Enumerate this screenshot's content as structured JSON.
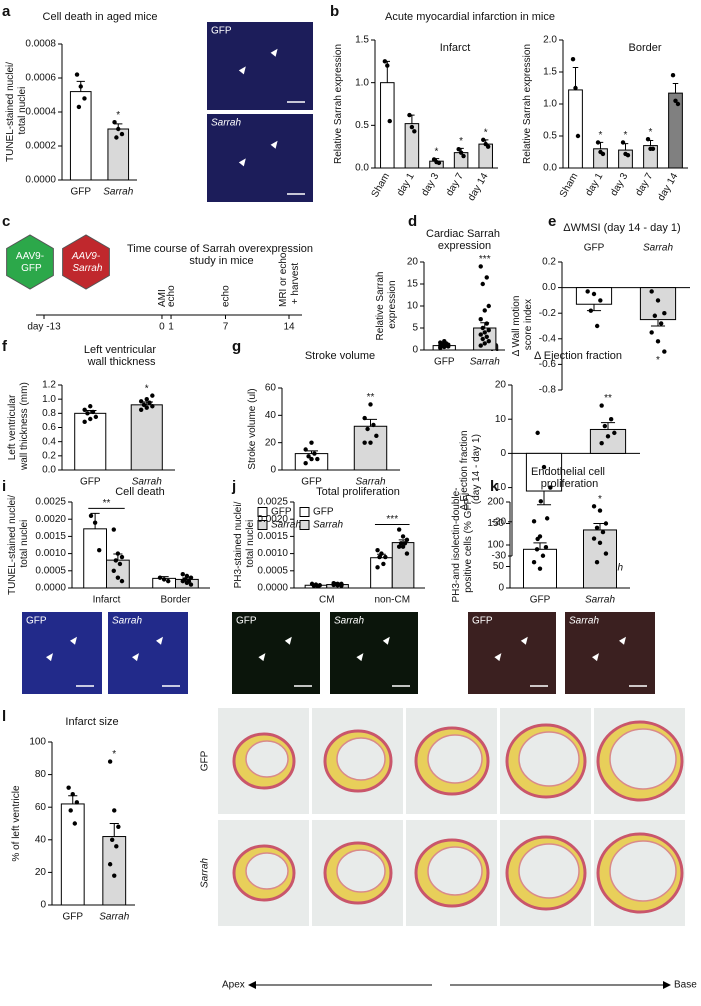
{
  "panels": [
    "a",
    "b",
    "c",
    "d",
    "e",
    "f",
    "g",
    "h",
    "i",
    "j",
    "k",
    "l"
  ],
  "group_title": "Acute myocardial infarction in mice",
  "micrographs": [
    "GFP",
    "Sarrah",
    "GFP",
    "Sarrah",
    "GFP",
    "Sarrah",
    "GFP",
    "Sarrah"
  ],
  "sections": {
    "row_labels": [
      "GFP",
      "Sarrah"
    ],
    "start": "Apex",
    "end": "Base"
  },
  "chart_data": [
    {
      "type": "bar",
      "title": "Cell death in aged mice",
      "ylabel": "TUNEL-stained nuclei/ total nuclei",
      "categories": [
        "GFP",
        "Sarrah"
      ],
      "category_italic": [
        false,
        true
      ],
      "colors": [
        "#ffffff",
        "#d9d9d9"
      ],
      "values": [
        0.00052,
        0.0003
      ],
      "errors": [
        6e-05,
        3e-05
      ],
      "points": [
        [
          0.00062,
          0.00055,
          0.00048,
          0.00043
        ],
        [
          0.00034,
          0.0003,
          0.00027,
          0.00025
        ]
      ],
      "ylim": [
        0,
        0.0008
      ],
      "yticks": [
        {
          "value": 0,
          "label": "0.0000"
        },
        0.0002,
        0.0004,
        0.0006,
        0.0008
      ],
      "annotations": [
        {
          "x": "Sarrah",
          "text": "*"
        }
      ]
    },
    {
      "type": "bar",
      "title": "Infarct",
      "ylabel": "Relative Sarrah expression",
      "categories": [
        "Sham",
        "day 1",
        "day 3",
        "day 7",
        "day 14"
      ],
      "colors": [
        "#ffffff",
        "#d9d9d9",
        "#d9d9d9",
        "#d9d9d9",
        "#d9d9d9"
      ],
      "values": [
        1.0,
        0.52,
        0.08,
        0.18,
        0.28
      ],
      "errors": [
        0.25,
        0.1,
        0.03,
        0.05,
        0.05
      ],
      "points": [
        [
          1.25,
          1.2,
          0.55
        ],
        [
          0.62,
          0.48,
          0.43
        ],
        [
          0.1,
          0.07,
          0.06
        ],
        [
          0.22,
          0.18,
          0.14
        ],
        [
          0.33,
          0.28,
          0.25
        ]
      ],
      "ylim": [
        0,
        1.5
      ],
      "yticks": [
        {
          "value": 0,
          "label": "0.0"
        },
        0.5,
        {
          "value": 1,
          "label": "1.0"
        },
        1.5
      ],
      "annotations": [
        {
          "x": "day 3",
          "text": "*"
        },
        {
          "x": "day 7",
          "text": "*"
        },
        {
          "x": "day 14",
          "text": "*"
        }
      ]
    },
    {
      "type": "bar",
      "title": "Border",
      "ylabel": "Relative Sarrah expression",
      "categories": [
        "Sham",
        "day 1",
        "day 3",
        "day 7",
        "day 14"
      ],
      "colors": [
        "#ffffff",
        "#d9d9d9",
        "#d9d9d9",
        "#d9d9d9",
        "#808080"
      ],
      "values": [
        1.22,
        0.3,
        0.28,
        0.35,
        1.17
      ],
      "errors": [
        0.35,
        0.1,
        0.1,
        0.08,
        0.15
      ],
      "points": [
        [
          1.7,
          1.25,
          0.5
        ],
        [
          0.4,
          0.25,
          0.22
        ],
        [
          0.4,
          0.22,
          0.2
        ],
        [
          0.45,
          0.3,
          0.3
        ],
        [
          1.45,
          1.05,
          1.0
        ]
      ],
      "ylim": [
        0,
        2
      ],
      "yticks": [
        {
          "value": 0,
          "label": "0.0"
        },
        0.5,
        {
          "value": 1,
          "label": "1.0"
        },
        1.5,
        {
          "value": 2,
          "label": "2.0"
        }
      ],
      "annotations": [
        {
          "x": "day 1",
          "text": "*"
        },
        {
          "x": "day 3",
          "text": "*"
        },
        {
          "x": "day 7",
          "text": "*"
        }
      ]
    },
    {
      "type": "timeline",
      "title": "Time course of Sarrah overexpression study in mice",
      "vectors": [
        {
          "label": "AAV9-GFP",
          "color": "#2ca84a"
        },
        {
          "label": "AAV9-Sarrah",
          "color": "#c0282d"
        }
      ],
      "xlim": [
        -13,
        14
      ],
      "xticks": [
        {
          "value": -13,
          "label": "day -13"
        },
        0,
        1,
        7,
        14
      ],
      "events": [
        {
          "x": 0,
          "label": "AMI"
        },
        {
          "x": 1,
          "label": "echo"
        },
        {
          "x": 7,
          "label": "echo"
        },
        {
          "x": 14,
          "label": "MRI or echo + harvest"
        }
      ]
    },
    {
      "type": "bar",
      "title": "Cardiac Sarrah expression",
      "ylabel": "Relative Sarrah expression",
      "categories": [
        "GFP",
        "Sarrah"
      ],
      "category_italic": [
        false,
        true
      ],
      "colors": [
        "#ffffff",
        "#d9d9d9"
      ],
      "values": [
        1.0,
        5.0
      ],
      "errors": [
        0.2,
        1.2
      ],
      "points": [
        [
          0.5,
          0.7,
          0.8,
          0.9,
          1.0,
          1.0,
          1.1,
          1.2,
          1.3,
          1.5,
          1.7,
          2.0
        ],
        [
          1,
          1.5,
          2,
          2.5,
          3,
          3.5,
          4,
          4.5,
          5,
          6,
          7,
          9,
          10,
          15,
          16.5,
          19
        ]
      ],
      "ylim": [
        0,
        20
      ],
      "yticks": [
        0,
        5,
        10,
        15,
        20
      ],
      "annotations": [
        {
          "x": "Sarrah",
          "text": "***"
        }
      ]
    },
    {
      "type": "bar",
      "title": "ΔWMSI (day 14 - day 1)",
      "ylabel": "Δ Wall motion score index",
      "categories": [
        "GFP",
        "Sarrah"
      ],
      "category_italic": [
        false,
        true
      ],
      "category_position": "top",
      "colors": [
        "#ffffff",
        "#d9d9d9"
      ],
      "values": [
        -0.13,
        -0.25
      ],
      "errors": [
        0.05,
        0.05
      ],
      "points": [
        [
          -0.03,
          -0.05,
          -0.1,
          -0.18,
          -0.3
        ],
        [
          -0.03,
          -0.1,
          -0.2,
          -0.22,
          -0.28,
          -0.35,
          -0.42,
          -0.5
        ]
      ],
      "ylim": [
        -0.8,
        0.2
      ],
      "yticks": [
        0.2,
        {
          "value": 0,
          "label": "0.0"
        },
        -0.2,
        -0.4,
        -0.6,
        -0.8
      ],
      "annotations": [
        {
          "x": "Sarrah",
          "text": "*"
        }
      ]
    },
    {
      "type": "bar",
      "title": "Left ventricular wall thickness",
      "ylabel": "Left ventricular wall thickness (mm)",
      "categories": [
        "GFP",
        "Sarrah"
      ],
      "category_italic": [
        false,
        true
      ],
      "colors": [
        "#ffffff",
        "#d9d9d9"
      ],
      "values": [
        0.8,
        0.92
      ],
      "errors": [
        0.04,
        0.04
      ],
      "points": [
        [
          0.68,
          0.72,
          0.75,
          0.8,
          0.82,
          0.85,
          0.9
        ],
        [
          0.85,
          0.88,
          0.9,
          0.92,
          0.95,
          0.97,
          1.0,
          1.05
        ]
      ],
      "ylim": [
        0,
        1.2
      ],
      "yticks": [
        {
          "value": 0,
          "label": "0.0"
        },
        0.2,
        0.4,
        0.6,
        0.8,
        {
          "value": 1,
          "label": "1.0"
        },
        1.2
      ],
      "annotations": [
        {
          "x": "Sarrah",
          "text": "*"
        }
      ]
    },
    {
      "type": "bar",
      "title": "Stroke volume",
      "ylabel": "Stroke volume (ul)",
      "categories": [
        "GFP",
        "Sarrah"
      ],
      "category_italic": [
        false,
        true
      ],
      "colors": [
        "#ffffff",
        "#d9d9d9"
      ],
      "values": [
        12,
        32
      ],
      "errors": [
        2,
        5
      ],
      "points": [
        [
          5,
          8,
          8,
          10,
          12,
          15,
          20
        ],
        [
          20,
          20,
          25,
          30,
          33,
          38,
          48
        ]
      ],
      "ylim": [
        0,
        60
      ],
      "yticks": [
        0,
        20,
        40,
        60
      ],
      "annotations": [
        {
          "x": "Sarrah",
          "text": "**"
        }
      ]
    },
    {
      "type": "bar",
      "title": "Δ Ejection fraction",
      "ylabel": "Δ Ejection fraction (day 14 - day 1)",
      "categories": [
        "GFP",
        "Sarrah"
      ],
      "category_italic": [
        false,
        true
      ],
      "colors": [
        "#ffffff",
        "#d9d9d9"
      ],
      "values": [
        -11,
        7
      ],
      "errors": [
        4,
        2
      ],
      "points": [
        [
          6,
          -4,
          -10,
          -14,
          -19,
          -25
        ],
        [
          3,
          5,
          6,
          8,
          10,
          14
        ]
      ],
      "ylim": [
        -30,
        20
      ],
      "yticks": [
        20,
        10,
        0,
        -10,
        -20,
        -30
      ],
      "annotations": [
        {
          "x": "Sarrah",
          "text": "**"
        }
      ]
    },
    {
      "type": "bar",
      "title": "Cell death",
      "ylabel": "TUNEL-stained nuclei/ total nuclei",
      "categories": [
        "Infarct",
        "Border"
      ],
      "series": [
        {
          "name": "GFP",
          "color": "#ffffff",
          "values": [
            0.00172,
            0.00028
          ],
          "errors": [
            0.00045,
            5e-05
          ],
          "points": [
            [
              0.0021,
              0.0019,
              0.0011
            ],
            [
              0.0003,
              0.00025,
              0.0002
            ]
          ]
        },
        {
          "name": "Sarrah",
          "italic": true,
          "color": "#d9d9d9",
          "values": [
            0.00081,
            0.00025
          ],
          "errors": [
            0.00018,
            4e-05
          ],
          "points": [
            [
              0.0017,
              0.001,
              0.0009,
              0.0008,
              0.0007,
              0.0005,
              0.0003,
              0.0002
            ],
            [
              0.0004,
              0.00035,
              0.0003,
              0.00025,
              0.0002,
              0.0002,
              0.00015,
              0.0001
            ]
          ]
        }
      ],
      "ylim": [
        0,
        0.0025
      ],
      "yticks": [
        {
          "value": 0,
          "label": "0.0000"
        },
        0.0005,
        {
          "value": 0.001,
          "label": "0.0010"
        },
        0.0015,
        {
          "value": 0.002,
          "label": "0.0020"
        },
        0.0025
      ],
      "annotations": [
        {
          "x": "Infarct",
          "text": "**"
        }
      ]
    },
    {
      "type": "bar",
      "title": "Total proliferation",
      "ylabel": "PH3-stained nuclei/ total nuclei",
      "categories": [
        "CM",
        "non-CM"
      ],
      "series": [
        {
          "name": "GFP",
          "color": "#ffffff",
          "values": [
            8e-05,
            0.00088
          ],
          "errors": [
            2e-05,
            0.0001
          ],
          "points": [
            [
              0.00012,
              0.0001,
              8e-05,
              6e-05,
              5e-05
            ],
            [
              0.0011,
              0.001,
              0.0009,
              0.0009,
              0.0007,
              0.0006
            ]
          ]
        },
        {
          "name": "Sarrah",
          "italic": true,
          "color": "#d9d9d9",
          "values": [
            0.0001,
            0.00132
          ],
          "errors": [
            2e-05,
            8e-05
          ],
          "points": [
            [
              0.00014,
              0.00012,
              0.00012,
              0.00011,
              0.0001,
              9e-05,
              8e-05,
              7e-05
            ],
            [
              0.0017,
              0.0015,
              0.0014,
              0.0013,
              0.0013,
              0.0012,
              0.0012,
              0.001
            ]
          ]
        }
      ],
      "ylim": [
        0,
        0.0025
      ],
      "yticks": [
        {
          "value": 0,
          "label": "0.0000"
        },
        0.0005,
        {
          "value": 0.001,
          "label": "0.0010"
        },
        0.0015,
        {
          "value": 0.002,
          "label": "0.0020"
        },
        0.0025
      ],
      "annotations": [
        {
          "x": "non-CM",
          "text": "***"
        }
      ]
    },
    {
      "type": "bar",
      "title": "Endothelial cell proliferation",
      "ylabel": "PH3-and isolectin-double-positive cells (% GFP)",
      "categories": [
        "GFP",
        "Sarrah"
      ],
      "category_italic": [
        false,
        true
      ],
      "colors": [
        "#ffffff",
        "#d9d9d9"
      ],
      "values": [
        90,
        135
      ],
      "errors": [
        15,
        15
      ],
      "points": [
        [
          155,
          120,
          95,
          90,
          75,
          60,
          45
        ],
        [
          190,
          180,
          150,
          140,
          130,
          115,
          105,
          80,
          60
        ]
      ],
      "ylim": [
        0,
        200
      ],
      "yticks": [
        0,
        50,
        100,
        150,
        200
      ],
      "annotations": [
        {
          "x": "Sarrah",
          "text": "*"
        }
      ]
    },
    {
      "type": "bar",
      "title": "Infarct size",
      "ylabel": "% of left ventricle",
      "categories": [
        "GFP",
        "Sarrah"
      ],
      "category_italic": [
        false,
        true
      ],
      "colors": [
        "#ffffff",
        "#d9d9d9"
      ],
      "values": [
        62,
        42
      ],
      "errors": [
        5,
        8
      ],
      "points": [
        [
          72,
          68,
          63,
          58,
          50
        ],
        [
          88,
          58,
          48,
          40,
          36,
          25,
          18
        ]
      ],
      "ylim": [
        0,
        100
      ],
      "yticks": [
        0,
        20,
        40,
        60,
        80,
        100
      ],
      "annotations": [
        {
          "x": "Sarrah",
          "text": "*"
        }
      ]
    }
  ]
}
